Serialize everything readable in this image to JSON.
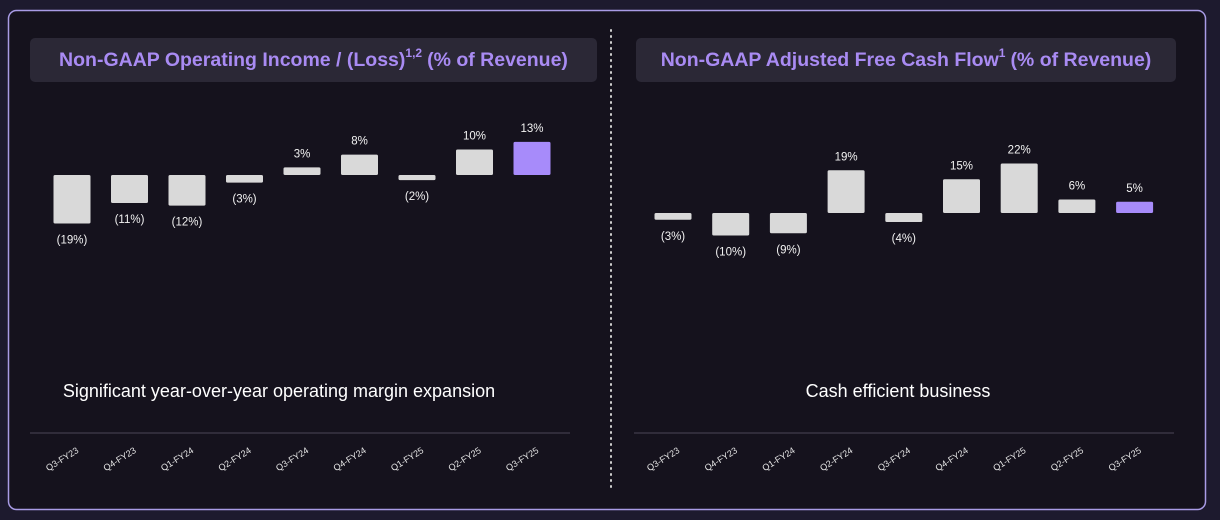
{
  "chart_data": [
    {
      "type": "bar",
      "title": "Non-GAAP Operating Income / (Loss)",
      "title_footnote": "1,2",
      "title_suffix": "(% of Revenue)",
      "annotation": "Significant year-over-year operating margin expansion",
      "categories": [
        "Q3-FY23",
        "Q4-FY23",
        "Q1-FY24",
        "Q2-FY24",
        "Q3-FY24",
        "Q4-FY24",
        "Q1-FY25",
        "Q2-FY25",
        "Q3-FY25"
      ],
      "values": [
        -19,
        -11,
        -12,
        -3,
        3,
        8,
        -2,
        10,
        13
      ],
      "value_labels": [
        "(19%)",
        "(11%)",
        "(12%)",
        "(3%)",
        "3%",
        "8%",
        "(2%)",
        "10%",
        "13%"
      ],
      "colors": [
        "#d9d9d9",
        "#d9d9d9",
        "#d9d9d9",
        "#d9d9d9",
        "#d9d9d9",
        "#d9d9d9",
        "#d9d9d9",
        "#d9d9d9",
        "#a78bfa"
      ]
    },
    {
      "type": "bar",
      "title": "Non-GAAP Adjusted Free Cash Flow",
      "title_footnote": "1",
      "title_suffix": "(% of Revenue)",
      "annotation": "Cash efficient business",
      "categories": [
        "Q3-FY23",
        "Q4-FY23",
        "Q1-FY24",
        "Q2-FY24",
        "Q3-FY24",
        "Q4-FY24",
        "Q1-FY25",
        "Q2-FY25",
        "Q3-FY25"
      ],
      "values": [
        -3,
        -10,
        -9,
        19,
        -4,
        15,
        22,
        6,
        5
      ],
      "value_labels": [
        "(3%)",
        "(10%)",
        "(9%)",
        "19%",
        "(4%)",
        "15%",
        "22%",
        "6%",
        "5%"
      ],
      "colors": [
        "#d9d9d9",
        "#d9d9d9",
        "#d9d9d9",
        "#d9d9d9",
        "#d9d9d9",
        "#d9d9d9",
        "#d9d9d9",
        "#d9d9d9",
        "#a78bfa"
      ]
    }
  ]
}
